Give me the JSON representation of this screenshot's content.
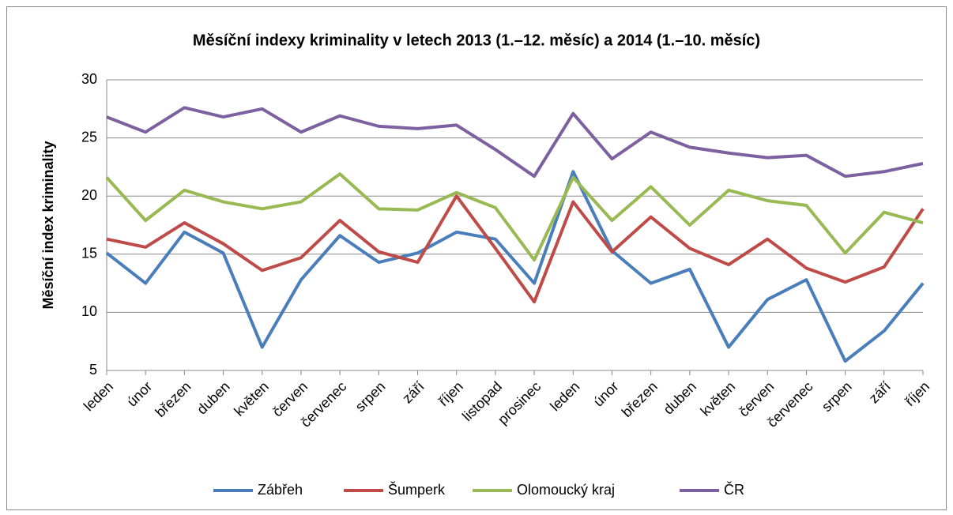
{
  "chart_data": {
    "type": "line",
    "title": "Měsíční indexy kriminality v letech 2013 (1.–12. měsíc) a 2014 (1.–10. měsíc)",
    "y_label": "Měsíční index kriminality",
    "categories": [
      "leden",
      "únor",
      "březen",
      "duben",
      "květen",
      "červen",
      "červenec",
      "srpen",
      "září",
      "říjen",
      "listopad",
      "prosinec",
      "leden",
      "únor",
      "březen",
      "duben",
      "květen",
      "červen",
      "červenec",
      "srpen",
      "září",
      "říjen"
    ],
    "series": [
      {
        "name": "Zábřeh",
        "color": "#4a7ebb",
        "values": [
          15.1,
          12.5,
          16.9,
          15.1,
          7.0,
          12.8,
          16.6,
          14.3,
          15.1,
          16.9,
          16.3,
          12.5,
          22.1,
          15.3,
          12.5,
          13.7,
          7.0,
          11.1,
          12.8,
          5.8,
          8.4,
          12.5
        ]
      },
      {
        "name": "Šumperk",
        "color": "#be4b48",
        "values": [
          16.3,
          15.6,
          17.7,
          15.9,
          13.6,
          14.7,
          17.9,
          15.2,
          14.3,
          20.0,
          15.5,
          10.9,
          19.5,
          15.2,
          18.2,
          15.5,
          14.1,
          16.3,
          13.8,
          12.6,
          13.9,
          18.9
        ]
      },
      {
        "name": "Olomoucký kraj",
        "color": "#98b954",
        "values": [
          21.6,
          17.9,
          20.5,
          19.5,
          18.9,
          19.5,
          21.9,
          18.9,
          18.8,
          20.3,
          19.0,
          14.5,
          21.6,
          17.9,
          20.8,
          17.5,
          20.5,
          19.6,
          19.2,
          15.1,
          18.6,
          17.7
        ]
      },
      {
        "name": "ČR",
        "color": "#7d60a0",
        "values": [
          26.8,
          25.5,
          27.6,
          26.8,
          27.5,
          25.5,
          26.9,
          26.0,
          25.8,
          26.1,
          24.0,
          21.7,
          27.1,
          23.2,
          25.5,
          24.2,
          23.7,
          23.3,
          23.5,
          21.7,
          22.1,
          22.8
        ]
      }
    ],
    "ylim": [
      5,
      30
    ],
    "yticks": [
      5,
      10,
      15,
      20,
      25,
      30
    ],
    "grid": true,
    "legend": "bottom"
  }
}
